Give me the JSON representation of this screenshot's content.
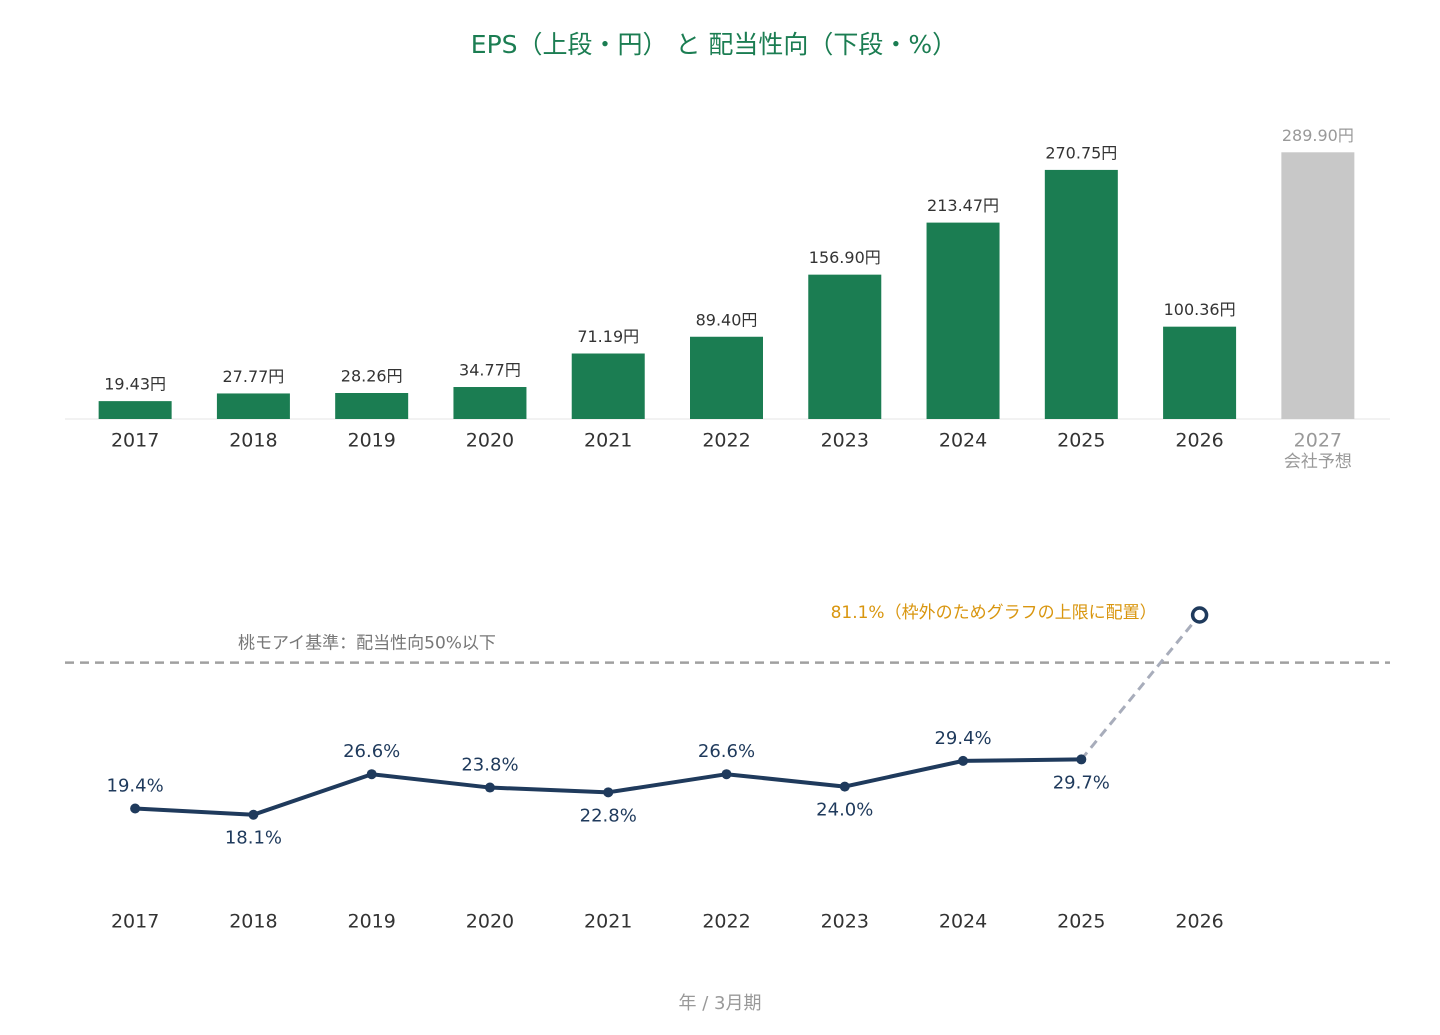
{
  "title": "EPS（上段・円） と 配当性向（下段・%）",
  "x_label": "年 / 3月期",
  "chart_data": [
    {
      "type": "bar",
      "categories": [
        "2017",
        "2018",
        "2019",
        "2020",
        "2021",
        "2022",
        "2023",
        "2024",
        "2025",
        "2026",
        "2027"
      ],
      "values": [
        19.43,
        27.77,
        28.26,
        34.77,
        71.19,
        89.4,
        156.9,
        213.47,
        270.75,
        100.36,
        289.9
      ],
      "value_labels": [
        "19.43円",
        "27.77円",
        "28.26円",
        "34.77円",
        "71.19円",
        "89.40円",
        "156.90円",
        "213.47円",
        "270.75円",
        "100.36円",
        "289.90円"
      ],
      "color": "#1b7d52",
      "forecast_index": 10,
      "forecast_color": "#c8c8c8",
      "forecast_label": "会社予想",
      "ylim": [
        0,
        300
      ]
    },
    {
      "type": "line",
      "categories": [
        "2017",
        "2018",
        "2019",
        "2020",
        "2021",
        "2022",
        "2023",
        "2024",
        "2025",
        "2026"
      ],
      "values": [
        19.4,
        18.1,
        26.6,
        23.8,
        22.8,
        26.6,
        24.0,
        29.4,
        29.7,
        null
      ],
      "value_labels": [
        "19.4%",
        "18.1%",
        "26.6%",
        "23.8%",
        "22.8%",
        "26.6%",
        "24.0%",
        "29.4%",
        "29.7%",
        null
      ],
      "color": "#1f3a5c",
      "ylim": [
        0,
        60
      ],
      "reference": {
        "value": 50,
        "label": "桃モアイ基準：配当性向50%以下",
        "color": "#a0a0a0"
      },
      "overflow_annotation": {
        "label": "81.1%（枠外のためグラフの上限に配置）",
        "color": "#d9960f"
      }
    }
  ]
}
